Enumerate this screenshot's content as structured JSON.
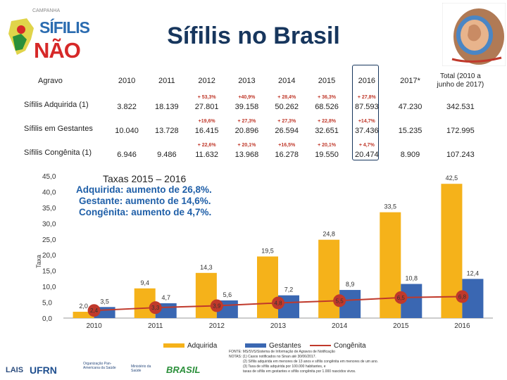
{
  "title": "Sífilis no Brasil",
  "logo": {
    "small": "CAMPANHA",
    "sifilis": "SÍFILIS",
    "nao": "NÃO"
  },
  "table": {
    "headers": [
      "Agravo",
      "2010",
      "2011",
      "2012",
      "2013",
      "2014",
      "2015",
      "2016",
      "2017*",
      "Total (2010 a junho de 2017)"
    ],
    "rows": [
      {
        "label": "Sífilis Adquirida (1)",
        "values": [
          "3.822",
          "18.139",
          "27.801",
          "39.158",
          "50.262",
          "68.526",
          "87.593",
          "47.230",
          "342.531"
        ],
        "changes": [
          "",
          "",
          "+ 53,3%",
          "+40,9%",
          "+ 28,4%",
          "+ 36,3%",
          "+ 27,8%",
          "",
          ""
        ]
      },
      {
        "label": "Sífilis em Gestantes",
        "values": [
          "10.040",
          "13.728",
          "16.415",
          "20.896",
          "26.594",
          "32.651",
          "37.436",
          "15.235",
          "172.995"
        ],
        "changes": [
          "",
          "",
          "+19,6%",
          "+ 27,3%",
          "+ 27,3%",
          "+ 22,8%",
          "+14,7%",
          "",
          ""
        ]
      },
      {
        "label": "Sífilis Congênita (1)",
        "values": [
          "6.946",
          "9.486",
          "11.632",
          "13.968",
          "16.278",
          "19.550",
          "20.474",
          "8.909",
          "107.243"
        ],
        "changes": [
          "",
          "",
          "+ 22,6%",
          "+ 20,1%",
          "+16,5%",
          "+ 20,1%",
          "+ 4,7%",
          "",
          ""
        ]
      }
    ]
  },
  "annotation": {
    "heading": "Taxas 2015 – 2016",
    "lines": [
      "Adquirida: aumento de 26,8%.",
      "Gestante: aumento de 14,6%.",
      "Congênita: aumento de 4,7%."
    ]
  },
  "chart_data": {
    "type": "bar+line",
    "title": "",
    "ylabel": "Taxa",
    "ylim": [
      0,
      45
    ],
    "yticks": [
      "0,0",
      "5,0",
      "10,0",
      "15,0",
      "20,0",
      "25,0",
      "30,0",
      "35,0",
      "40,0",
      "45,0"
    ],
    "categories": [
      "2010",
      "2011",
      "2012",
      "2013",
      "2014",
      "2015",
      "2016"
    ],
    "series": [
      {
        "name": "Adquirida",
        "kind": "bar",
        "color": "#f5b21a",
        "values": [
          2.0,
          9.4,
          14.3,
          19.5,
          24.8,
          33.5,
          42.5
        ],
        "labels": [
          "2,0",
          "9,4",
          "14,3",
          "19,5",
          "24,8",
          "33,5",
          "42,5"
        ]
      },
      {
        "name": "Gestantes",
        "kind": "bar",
        "color": "#3a67b2",
        "values": [
          3.5,
          4.7,
          5.6,
          7.2,
          8.9,
          10.8,
          12.4
        ],
        "labels": [
          "3,5",
          "4,7",
          "5,6",
          "7,2",
          "8,9",
          "10,8",
          "12,4"
        ]
      },
      {
        "name": "Congênita",
        "kind": "line",
        "color": "#c0392b",
        "values": [
          2.4,
          3.3,
          3.9,
          4.8,
          5.5,
          6.5,
          6.8
        ],
        "labels": [
          "2,4",
          "3,3",
          "3,9",
          "4,8",
          "5,5",
          "6,5",
          "6,8"
        ]
      }
    ]
  },
  "footnote": {
    "source": "FONTE: MS/SVS/Sistema de Informação de Agravos de Notificação",
    "notes": "NOTAS: (1) Casos notificados no Sinan até 30/06/2017.",
    "n2": "(2) Sífilis adquirida em menores de 13 anos e sífilis congênita em menores de um ano.",
    "n3": "(3) Taxa de sífilis adquirida por 100.000 habitantes, e",
    "n4": "taxas de sífilis em gestantes e sífilis congênita por 1.000 nascidos vivos."
  },
  "bottom_logos": [
    "LAIS",
    "UFRN",
    "Organização Pan-Americana da Saúde",
    "Ministério da Saúde",
    "BRASIL"
  ]
}
